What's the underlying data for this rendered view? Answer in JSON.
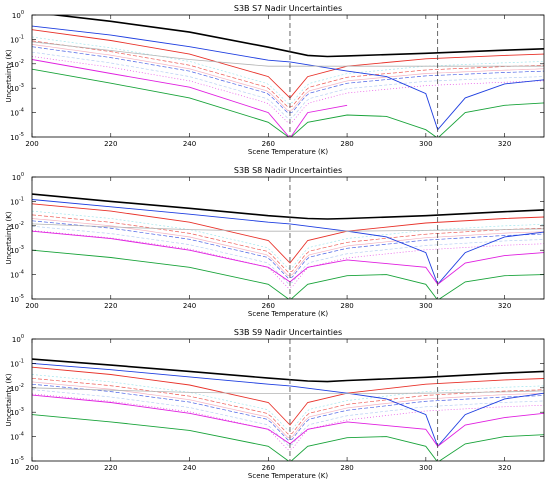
{
  "colors": {
    "black": "#000000",
    "red": "#e8322a",
    "blue": "#1f3fe0",
    "green": "#19a33a",
    "magenta": "#e020e0",
    "cyan": "#8fe0e8",
    "grey": "#b4b4b4",
    "pink": "#f2a0b0",
    "lightblue": "#a8c4f0",
    "vline": "#444444"
  },
  "chart_data": [
    {
      "type": "line",
      "title": "S3B S7 Nadir Uncertainties",
      "xlabel": "Scene Temperature (K)",
      "ylabel": "Uncertainty (K)",
      "xlim": [
        200,
        330
      ],
      "ylim_exponents": [
        -5,
        0
      ],
      "yscale": "log",
      "xticks": [
        "200",
        "220",
        "240",
        "260",
        "280",
        "300",
        "320"
      ],
      "ytick_base": "10",
      "ytick_exponents": [
        "0",
        "-1",
        "-2",
        "-3",
        "-4",
        "-5"
      ],
      "vertical_lines_x": [
        265.5,
        303
      ],
      "series": [
        {
          "x": [
            200,
            220,
            240,
            260,
            270,
            275,
            280,
            300,
            320,
            330
          ],
          "values": [
            1.3,
            0.55,
            0.2,
            0.048,
            0.022,
            0.02,
            0.021,
            0.027,
            0.036,
            0.041
          ]
        },
        {
          "x": [
            200,
            220,
            240,
            260,
            265.5,
            270,
            280,
            300,
            320,
            330
          ],
          "values": [
            0.25,
            0.09,
            0.025,
            0.003,
            0.0004,
            0.003,
            0.008,
            0.016,
            0.022,
            0.025
          ]
        },
        {
          "x": [
            200,
            220,
            240,
            260,
            265.5,
            280,
            290,
            300,
            303,
            310,
            320,
            330
          ],
          "values": [
            0.35,
            0.15,
            0.05,
            0.014,
            0.012,
            0.005,
            0.003,
            0.0006,
            2e-05,
            0.0004,
            0.0015,
            0.0022
          ]
        },
        {
          "x": [
            200,
            220,
            240,
            260,
            265.5,
            270,
            280,
            290,
            300,
            303,
            310,
            320,
            330
          ],
          "values": [
            0.006,
            0.0016,
            0.0004,
            4e-05,
            9e-06,
            4e-05,
            8e-05,
            7e-05,
            2e-05,
            9e-06,
            0.0001,
            0.0002,
            0.00025
          ]
        },
        {
          "x": [
            200,
            220,
            240,
            260,
            265.5,
            270,
            280
          ],
          "values": [
            0.015,
            0.004,
            0.0011,
            0.0001,
            9e-06,
            0.0001,
            0.0002
          ]
        },
        {
          "x": [
            200,
            220,
            240,
            260,
            280,
            300,
            320,
            330
          ],
          "values": [
            0.08,
            0.035,
            0.015,
            0.008,
            0.008,
            0.008,
            0.008,
            0.008
          ]
        }
      ]
    },
    {
      "type": "line",
      "title": "S3B S8 Nadir Uncertainties",
      "xlabel": "Scene Temperature (K)",
      "ylabel": "Uncertainty (K)",
      "xlim": [
        200,
        330
      ],
      "ylim_exponents": [
        -5,
        0
      ],
      "yscale": "log",
      "xticks": [
        "200",
        "220",
        "240",
        "260",
        "280",
        "300",
        "320"
      ],
      "ytick_base": "10",
      "ytick_exponents": [
        "0",
        "-1",
        "-2",
        "-3",
        "-4",
        "-5"
      ],
      "vertical_lines_x": [
        265.5,
        303
      ],
      "series": [
        {
          "x": [
            200,
            220,
            240,
            260,
            270,
            275,
            280,
            300,
            320,
            330
          ],
          "values": [
            0.2,
            0.1,
            0.052,
            0.026,
            0.02,
            0.019,
            0.02,
            0.026,
            0.038,
            0.045
          ]
        },
        {
          "x": [
            200,
            220,
            240,
            260,
            265.5,
            270,
            280,
            300,
            320,
            330
          ],
          "values": [
            0.08,
            0.04,
            0.014,
            0.0025,
            0.0003,
            0.0025,
            0.006,
            0.013,
            0.02,
            0.023
          ]
        },
        {
          "x": [
            200,
            220,
            240,
            260,
            265.5,
            280,
            290,
            300,
            303,
            310,
            320,
            330
          ],
          "values": [
            0.12,
            0.06,
            0.03,
            0.014,
            0.012,
            0.006,
            0.0035,
            0.0008,
            4e-05,
            0.0008,
            0.0035,
            0.0055
          ]
        },
        {
          "x": [
            200,
            220,
            240,
            260,
            265.5,
            270,
            280,
            290,
            300,
            303,
            310,
            320,
            330
          ],
          "values": [
            0.001,
            0.0005,
            0.0002,
            4e-05,
            9e-06,
            4e-05,
            9e-05,
            0.0001,
            4e-05,
            9e-06,
            5e-05,
            9e-05,
            0.0001
          ]
        },
        {
          "x": [
            200,
            220,
            240,
            260,
            265.5,
            270,
            280,
            300,
            303,
            310,
            320,
            330
          ],
          "values": [
            0.006,
            0.003,
            0.001,
            0.0002,
            5e-05,
            0.0002,
            0.0004,
            0.0002,
            4e-05,
            0.0003,
            0.0006,
            0.0008
          ]
        },
        {
          "x": [
            200,
            220,
            240,
            260,
            280,
            300,
            320,
            330
          ],
          "values": [
            0.012,
            0.009,
            0.007,
            0.006,
            0.006,
            0.0065,
            0.007,
            0.0075
          ]
        }
      ]
    },
    {
      "type": "line",
      "title": "S3B S9 Nadir Uncertainties",
      "xlabel": "Scene Temperature (K)",
      "ylabel": "Uncertainty (K)",
      "xlim": [
        200,
        330
      ],
      "ylim_exponents": [
        -5,
        0
      ],
      "yscale": "log",
      "xticks": [
        "200",
        "220",
        "240",
        "260",
        "280",
        "300",
        "320"
      ],
      "ytick_base": "10",
      "ytick_exponents": [
        "0",
        "-1",
        "-2",
        "-3",
        "-4",
        "-5"
      ],
      "vertical_lines_x": [
        265.5,
        303
      ],
      "series": [
        {
          "x": [
            200,
            220,
            240,
            260,
            270,
            275,
            280,
            300,
            320,
            330
          ],
          "values": [
            0.15,
            0.085,
            0.047,
            0.025,
            0.019,
            0.018,
            0.02,
            0.027,
            0.04,
            0.047
          ]
        },
        {
          "x": [
            200,
            220,
            240,
            260,
            265.5,
            270,
            280,
            300,
            320,
            330
          ],
          "values": [
            0.07,
            0.035,
            0.013,
            0.0025,
            0.0003,
            0.0025,
            0.006,
            0.014,
            0.021,
            0.024
          ]
        },
        {
          "x": [
            200,
            220,
            240,
            260,
            265.5,
            280,
            290,
            300,
            303,
            310,
            320,
            330
          ],
          "values": [
            0.1,
            0.055,
            0.028,
            0.014,
            0.012,
            0.006,
            0.0035,
            0.0008,
            4e-05,
            0.0008,
            0.0035,
            0.006
          ]
        },
        {
          "x": [
            200,
            220,
            240,
            260,
            265.5,
            270,
            280,
            290,
            300,
            303,
            310,
            320,
            330
          ],
          "values": [
            0.0008,
            0.0004,
            0.00018,
            4e-05,
            9e-06,
            4e-05,
            9e-05,
            0.0001,
            4e-05,
            9e-06,
            5e-05,
            0.0001,
            0.00012
          ]
        },
        {
          "x": [
            200,
            220,
            240,
            260,
            265.5,
            270,
            280,
            300,
            303,
            310,
            320,
            330
          ],
          "values": [
            0.005,
            0.0025,
            0.0009,
            0.0002,
            5e-05,
            0.0002,
            0.0004,
            0.0002,
            4e-05,
            0.0003,
            0.0006,
            0.0009
          ]
        },
        {
          "x": [
            200,
            220,
            240,
            260,
            280,
            300,
            320,
            330
          ],
          "values": [
            0.01,
            0.008,
            0.0065,
            0.0058,
            0.0058,
            0.006,
            0.0068,
            0.0075
          ]
        }
      ]
    }
  ]
}
